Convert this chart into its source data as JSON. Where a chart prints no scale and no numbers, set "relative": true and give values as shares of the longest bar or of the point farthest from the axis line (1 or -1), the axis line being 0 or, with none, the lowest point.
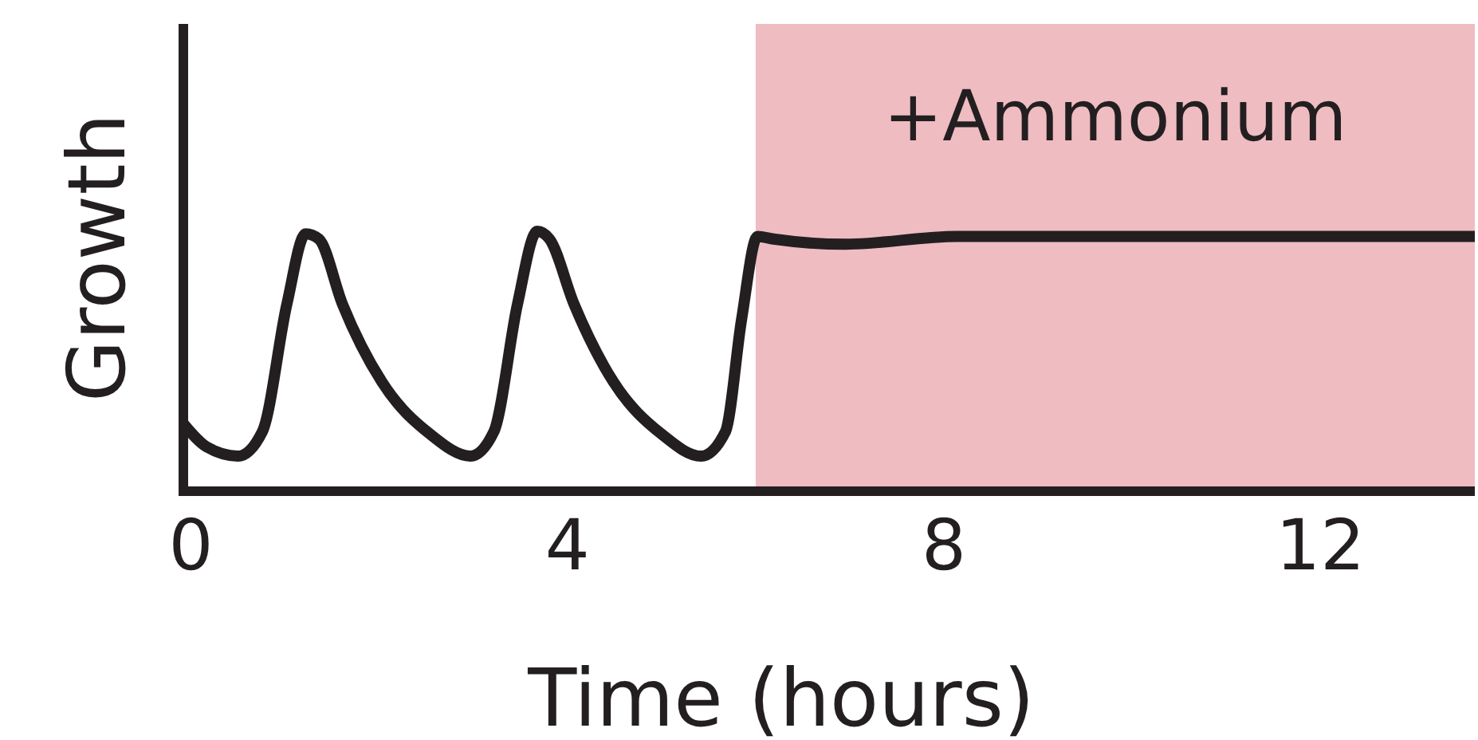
{
  "chart_data": {
    "type": "line",
    "xlabel": "Time (hours)",
    "ylabel": "Growth",
    "relative": true,
    "x": [
      -0.08,
      0.17,
      0.5,
      0.76,
      1.02,
      1.22,
      1.36,
      1.61,
      2.03,
      2.54,
      2.97,
      3.22,
      3.47,
      3.68,
      3.81,
      4.07,
      4.49,
      5.0,
      5.42,
      5.68,
      5.85,
      6.02,
      6.19,
      6.95,
      8.14,
      13.64
    ],
    "series": [
      {
        "color": "#231f20",
        "values": [
          0.26,
          0.17,
          0.135,
          0.23,
          0.72,
          0.99,
          0.97,
          0.72,
          0.42,
          0.22,
          0.135,
          0.23,
          0.72,
          1.0,
          0.97,
          0.72,
          0.42,
          0.22,
          0.135,
          0.23,
          0.66,
          0.98,
          0.97,
          0.95,
          0.98,
          0.98
        ]
      }
    ],
    "xlim": [
      -0.08,
      13.64
    ],
    "xticks": [
      0,
      4,
      8,
      12
    ],
    "bands": [
      {
        "axis": "x",
        "from": 6,
        "to": 13.64,
        "label": "+Ammonium",
        "color": "#efbcc2"
      }
    ],
    "marker": "none",
    "line_style": "solid"
  }
}
